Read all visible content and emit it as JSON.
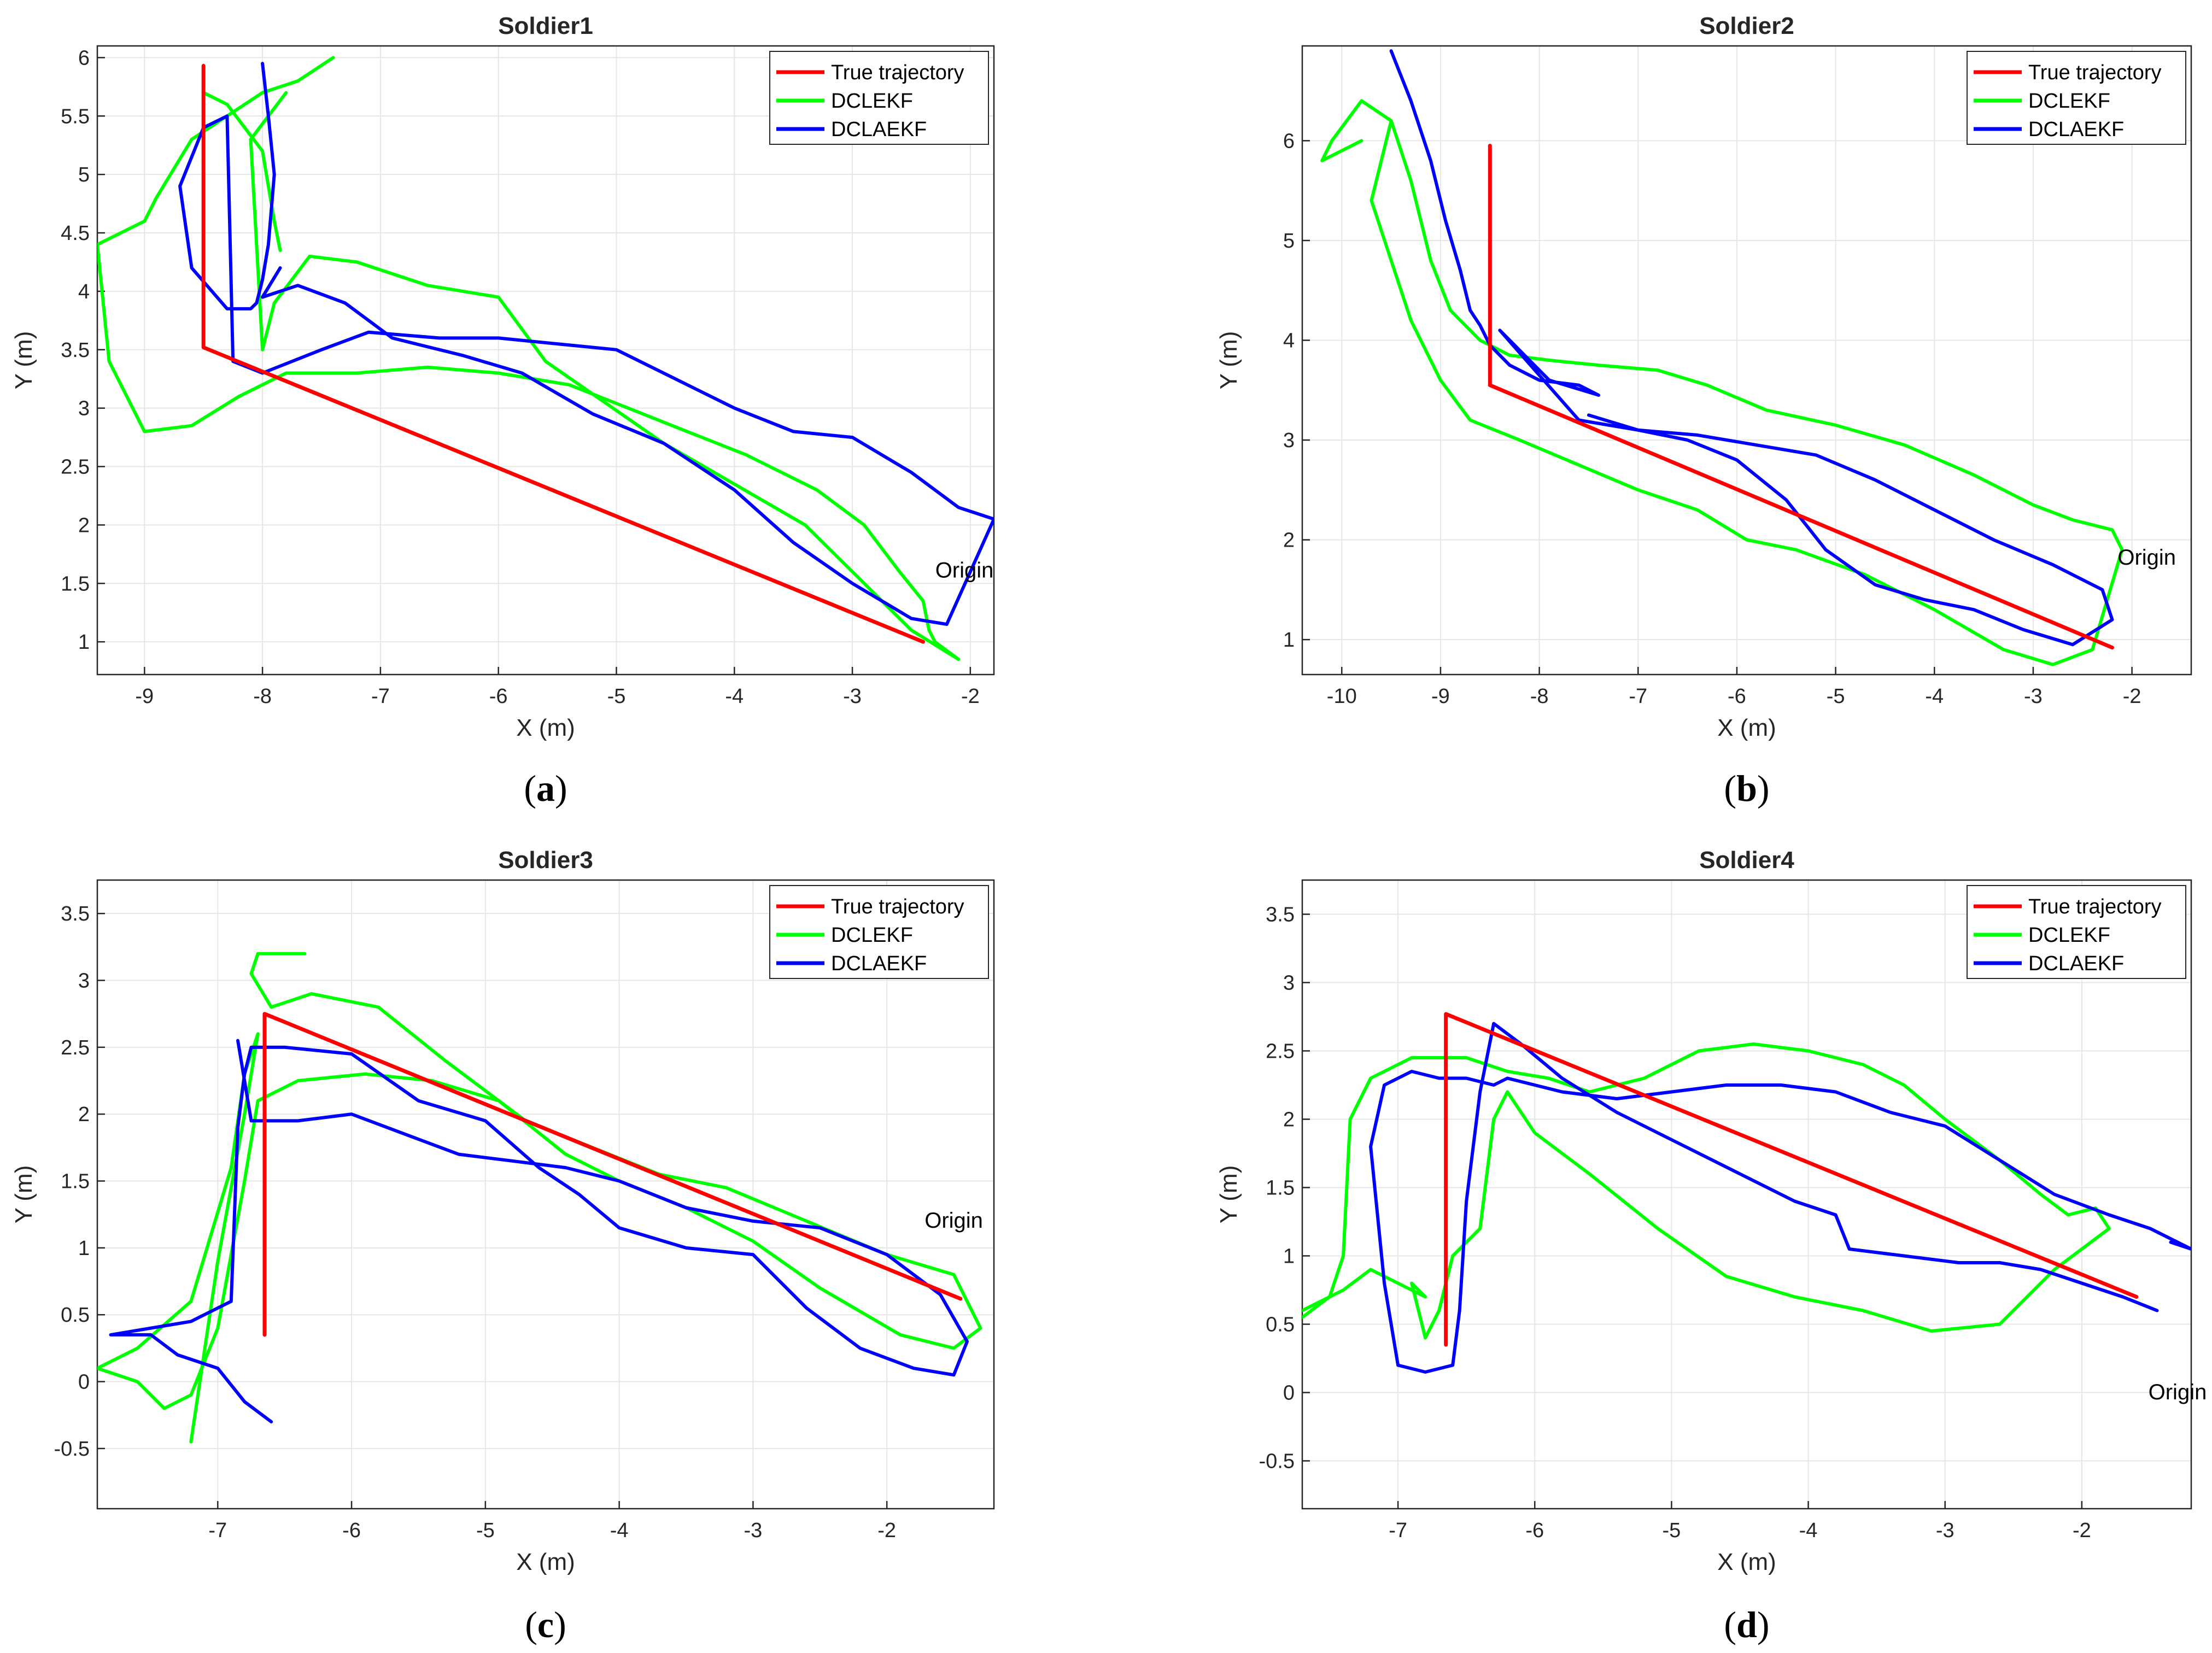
{
  "chart_data": [
    {
      "type": "line",
      "title": "Soldier1",
      "caption_letter": "a",
      "xlabel": "X (m)",
      "ylabel": "Y (m)",
      "xlim": [
        -9.4,
        -1.8
      ],
      "ylim": [
        0.72,
        6.1
      ],
      "xticks": [
        -9,
        -8,
        -7,
        -6,
        -5,
        -4,
        -3,
        -2
      ],
      "yticks": [
        1,
        1.5,
        2,
        2.5,
        3,
        3.5,
        4,
        4.5,
        5,
        5.5,
        6
      ],
      "grid": true,
      "legend_position": "top-right",
      "series": [
        {
          "name": "True trajectory",
          "color": "#ff0000",
          "x": [
            -8.5,
            -8.5,
            -2.4
          ],
          "y": [
            5.93,
            3.52,
            1.0
          ]
        },
        {
          "name": "DCLEKF",
          "color": "#00ff00",
          "x": [
            -7.4,
            -7.7,
            -8.0,
            -8.6,
            -8.9,
            -9.0,
            -9.4,
            -9.3,
            -9.2,
            -9.0,
            -8.6,
            -8.2,
            -7.8,
            -7.2,
            -6.6,
            -6.0,
            -5.4,
            -4.9,
            -4.4,
            -3.9,
            -3.3,
            -2.9,
            -2.6,
            -2.4,
            -2.35,
            -2.3,
            -2.1,
            -2.5,
            -2.7,
            -3.0,
            -3.4,
            -4.0,
            -4.6,
            -5.1,
            -5.6,
            -6.0,
            -6.6,
            -7.2,
            -7.6,
            -7.9,
            -8.0,
            -8.1,
            -7.8
          ],
          "y": [
            6.0,
            5.8,
            5.7,
            5.3,
            4.8,
            4.6,
            4.4,
            3.4,
            3.2,
            2.8,
            2.85,
            3.1,
            3.3,
            3.3,
            3.35,
            3.3,
            3.2,
            3.0,
            2.8,
            2.6,
            2.3,
            2.0,
            1.6,
            1.35,
            1.1,
            1.0,
            0.85,
            1.1,
            1.3,
            1.6,
            2.0,
            2.35,
            2.7,
            3.05,
            3.4,
            3.95,
            4.05,
            4.25,
            4.3,
            3.9,
            3.5,
            5.3,
            5.7
          ],
          "x2": [
            -7.85,
            -7.9,
            -8.0,
            -8.3,
            -8.5
          ],
          "y2": [
            4.35,
            4.6,
            5.2,
            5.6,
            5.7
          ]
        },
        {
          "name": "DCLAEKF",
          "color": "#0000ff",
          "x": [
            -8.0,
            -7.95,
            -7.9,
            -7.95,
            -8.0,
            -8.05,
            -8.1,
            -8.3,
            -8.6,
            -8.7,
            -8.5,
            -8.3,
            -8.25,
            -8.0,
            -7.5,
            -7.1,
            -6.5,
            -6.0,
            -5.5,
            -5.0,
            -4.5,
            -4.0,
            -3.5,
            -3.0,
            -2.5,
            -2.1,
            -1.8,
            -2.2,
            -2.5,
            -3.0,
            -3.5,
            -4.0,
            -4.6,
            -5.2,
            -5.8,
            -6.3,
            -6.9,
            -7.3,
            -7.7,
            -8.0,
            -7.85
          ],
          "y": [
            5.95,
            5.5,
            5.0,
            4.4,
            4.1,
            3.9,
            3.85,
            3.85,
            4.2,
            4.9,
            5.4,
            5.5,
            3.4,
            3.3,
            3.5,
            3.65,
            3.6,
            3.6,
            3.55,
            3.5,
            3.25,
            3.0,
            2.8,
            2.75,
            2.45,
            2.15,
            2.05,
            1.15,
            1.2,
            1.5,
            1.85,
            2.3,
            2.7,
            2.95,
            3.3,
            3.45,
            3.6,
            3.9,
            4.05,
            3.95,
            4.2
          ]
        }
      ],
      "annotations": [
        {
          "text": "Origin",
          "x": -2.05,
          "y": 1.55
        }
      ]
    },
    {
      "type": "line",
      "title": "Soldier2",
      "caption_letter": "b",
      "xlabel": "X (m)",
      "ylabel": "Y (m)",
      "xlim": [
        -10.4,
        -1.4
      ],
      "ylim": [
        0.65,
        6.95
      ],
      "xticks": [
        -10,
        -9,
        -8,
        -7,
        -6,
        -5,
        -4,
        -3,
        -2
      ],
      "yticks": [
        1,
        2,
        3,
        4,
        5,
        6
      ],
      "grid": true,
      "legend_position": "top-right",
      "series": [
        {
          "name": "True trajectory",
          "color": "#ff0000",
          "x": [
            -8.5,
            -8.5,
            -2.2
          ],
          "y": [
            5.95,
            3.55,
            0.92
          ]
        },
        {
          "name": "DCLEKF",
          "color": "#00ff00",
          "x": [
            -9.8,
            -10.2,
            -10.1,
            -9.8,
            -9.5,
            -9.3,
            -9.2,
            -9.1,
            -8.9,
            -8.6,
            -8.3,
            -7.9,
            -7.4,
            -6.8,
            -6.3,
            -5.7,
            -5.0,
            -4.3,
            -3.6,
            -3.0,
            -2.6,
            -2.2,
            -2.1,
            -2.4,
            -2.8,
            -3.3,
            -4.0,
            -4.7,
            -5.4,
            -5.9,
            -6.4,
            -7.0,
            -7.6,
            -8.2,
            -8.7,
            -9.0,
            -9.3,
            -9.5,
            -9.7,
            -9.5
          ],
          "y": [
            6.0,
            5.8,
            6.0,
            6.4,
            6.2,
            5.6,
            5.2,
            4.8,
            4.3,
            4.0,
            3.85,
            3.8,
            3.75,
            3.7,
            3.55,
            3.3,
            3.15,
            2.95,
            2.65,
            2.35,
            2.2,
            2.1,
            1.9,
            0.9,
            0.75,
            0.9,
            1.3,
            1.65,
            1.9,
            2.0,
            2.3,
            2.5,
            2.75,
            3.0,
            3.2,
            3.6,
            4.2,
            4.8,
            5.4,
            6.2
          ]
        },
        {
          "name": "DCLAEKF",
          "color": "#0000ff",
          "x": [
            -9.5,
            -9.3,
            -9.1,
            -8.95,
            -8.8,
            -8.7,
            -8.6,
            -8.5,
            -8.3,
            -8.0,
            -7.6,
            -7.4,
            -7.9,
            -8.2,
            -8.4,
            -7.6,
            -7.0,
            -6.4,
            -5.8,
            -5.2,
            -4.6,
            -4.0,
            -3.4,
            -2.8,
            -2.3,
            -2.2,
            -2.6,
            -3.1,
            -3.6,
            -4.1,
            -4.6,
            -5.1,
            -5.5,
            -6.0,
            -6.5,
            -7.0,
            -7.5
          ],
          "y": [
            6.9,
            6.4,
            5.8,
            5.2,
            4.7,
            4.3,
            4.15,
            3.95,
            3.75,
            3.6,
            3.55,
            3.45,
            3.6,
            3.9,
            4.1,
            3.2,
            3.1,
            3.05,
            2.95,
            2.85,
            2.6,
            2.3,
            2.0,
            1.75,
            1.5,
            1.2,
            0.95,
            1.1,
            1.3,
            1.4,
            1.55,
            1.9,
            2.4,
            2.8,
            3.0,
            3.1,
            3.25
          ]
        }
      ],
      "annotations": [
        {
          "text": "Origin",
          "x": -1.85,
          "y": 1.75
        }
      ]
    },
    {
      "type": "line",
      "title": "Soldier3",
      "caption_letter": "c",
      "xlabel": "X (m)",
      "ylabel": "Y (m)",
      "xlim": [
        -7.9,
        -1.2
      ],
      "ylim": [
        -0.95,
        3.75
      ],
      "xticks": [
        -7,
        -6,
        -5,
        -4,
        -3,
        -2
      ],
      "yticks": [
        -0.5,
        0,
        0.5,
        1,
        1.5,
        2,
        2.5,
        3,
        3.5
      ],
      "grid": true,
      "legend_position": "top-right",
      "series": [
        {
          "name": "True trajectory",
          "color": "#ff0000",
          "x": [
            -6.65,
            -6.65,
            -1.45
          ],
          "y": [
            0.35,
            2.75,
            0.62
          ]
        },
        {
          "name": "DCLEKF",
          "color": "#00ff00",
          "x": [
            -6.35,
            -6.7,
            -6.75,
            -6.6,
            -6.3,
            -5.8,
            -5.3,
            -4.7,
            -4.2,
            -3.7,
            -3.2,
            -2.6,
            -2.0,
            -1.5,
            -1.3,
            -1.5,
            -1.9,
            -2.5,
            -3.0,
            -3.5,
            -4.0,
            -4.4,
            -4.9,
            -5.4,
            -5.9,
            -6.4,
            -6.7,
            -6.8,
            -7.0,
            -7.2,
            -7.4,
            -7.6,
            -7.9,
            -7.6,
            -7.2,
            -6.9,
            -6.8,
            -6.7,
            -6.8,
            -7.0,
            -7.2
          ],
          "y": [
            3.2,
            3.2,
            3.05,
            2.8,
            2.9,
            2.8,
            2.4,
            1.95,
            1.75,
            1.55,
            1.45,
            1.2,
            0.95,
            0.8,
            0.4,
            0.25,
            0.35,
            0.7,
            1.05,
            1.3,
            1.5,
            1.7,
            2.1,
            2.25,
            2.3,
            2.25,
            2.1,
            1.5,
            0.4,
            -0.1,
            -0.2,
            0.0,
            0.1,
            0.25,
            0.6,
            1.6,
            2.3,
            2.6,
            2.0,
            0.9,
            -0.45
          ]
        },
        {
          "name": "DCLAEKF",
          "color": "#0000ff",
          "x": [
            -6.6,
            -6.8,
            -7.0,
            -7.3,
            -7.5,
            -7.8,
            -7.2,
            -6.9,
            -6.85,
            -6.8,
            -6.75,
            -6.5,
            -6.0,
            -5.5,
            -5.0,
            -4.6,
            -4.3,
            -4.0,
            -3.5,
            -3.0,
            -2.6,
            -2.2,
            -1.8,
            -1.5,
            -1.4,
            -1.6,
            -2.0,
            -2.5,
            -3.0,
            -3.5,
            -4.0,
            -4.4,
            -4.8,
            -5.2,
            -5.6,
            -6.0,
            -6.4,
            -6.75,
            -6.85
          ],
          "y": [
            -0.3,
            -0.15,
            0.1,
            0.2,
            0.35,
            0.35,
            0.45,
            0.6,
            1.9,
            2.3,
            2.5,
            2.5,
            2.45,
            2.1,
            1.95,
            1.6,
            1.4,
            1.15,
            1.0,
            0.95,
            0.55,
            0.25,
            0.1,
            0.05,
            0.3,
            0.65,
            0.95,
            1.15,
            1.2,
            1.3,
            1.5,
            1.6,
            1.65,
            1.7,
            1.85,
            2.0,
            1.95,
            1.95,
            2.55
          ]
        }
      ],
      "annotations": [
        {
          "text": "Origin",
          "x": -1.5,
          "y": 1.15
        }
      ]
    },
    {
      "type": "line",
      "title": "Soldier4",
      "caption_letter": "d",
      "xlabel": "X (m)",
      "ylabel": "Y (m)",
      "xlim": [
        -7.7,
        -1.2
      ],
      "ylim": [
        -0.85,
        3.75
      ],
      "xticks": [
        -7,
        -6,
        -5,
        -4,
        -3,
        -2
      ],
      "yticks": [
        -0.5,
        0,
        0.5,
        1,
        1.5,
        2,
        2.5,
        3,
        3.5
      ],
      "grid": true,
      "legend_position": "top-right",
      "series": [
        {
          "name": "True trajectory",
          "color": "#ff0000",
          "x": [
            -6.65,
            -6.65,
            -1.6
          ],
          "y": [
            0.35,
            2.77,
            0.7
          ]
        },
        {
          "name": "DCLEKF",
          "color": "#00ff00",
          "x": [
            -7.7,
            -7.5,
            -7.4,
            -7.35,
            -7.2,
            -6.9,
            -6.5,
            -6.2,
            -5.9,
            -5.6,
            -5.2,
            -4.8,
            -4.4,
            -4.0,
            -3.6,
            -3.3,
            -3.0,
            -2.6,
            -2.3,
            -2.1,
            -1.9,
            -1.8,
            -2.2,
            -2.6,
            -3.1,
            -3.6,
            -4.1,
            -4.6,
            -5.1,
            -5.6,
            -6.0,
            -6.2,
            -6.3,
            -6.4,
            -6.6,
            -6.7,
            -6.8,
            -6.9,
            -6.8,
            -7.2,
            -7.4,
            -7.7
          ],
          "y": [
            0.55,
            0.7,
            1.0,
            2.0,
            2.3,
            2.45,
            2.45,
            2.35,
            2.3,
            2.2,
            2.3,
            2.5,
            2.55,
            2.5,
            2.4,
            2.25,
            2.0,
            1.7,
            1.45,
            1.3,
            1.35,
            1.2,
            0.9,
            0.5,
            0.45,
            0.6,
            0.7,
            0.85,
            1.2,
            1.6,
            1.9,
            2.2,
            2.0,
            1.2,
            1.0,
            0.6,
            0.4,
            0.8,
            0.7,
            0.9,
            0.75,
            0.6
          ]
        },
        {
          "name": "DCLAEKF",
          "color": "#0000ff",
          "x": [
            -1.45,
            -1.7,
            -2.0,
            -2.3,
            -2.6,
            -2.9,
            -3.3,
            -3.7,
            -3.8,
            -4.1,
            -4.5,
            -5.0,
            -5.4,
            -5.8,
            -6.1,
            -6.3,
            -6.4,
            -6.5,
            -6.55,
            -6.6,
            -6.8,
            -7.0,
            -7.1,
            -7.2,
            -7.1,
            -6.9,
            -6.7,
            -6.5,
            -6.3,
            -6.2,
            -5.8,
            -5.4,
            -5.0,
            -4.6,
            -4.2,
            -3.8,
            -3.4,
            -3.0,
            -2.6,
            -2.2,
            -1.8,
            -1.5,
            -1.2,
            -1.35
          ],
          "y": [
            0.6,
            0.7,
            0.8,
            0.9,
            0.95,
            0.95,
            1.0,
            1.05,
            1.3,
            1.4,
            1.6,
            1.85,
            2.05,
            2.3,
            2.55,
            2.7,
            2.2,
            1.4,
            0.6,
            0.2,
            0.15,
            0.2,
            0.8,
            1.8,
            2.25,
            2.35,
            2.3,
            2.3,
            2.25,
            2.3,
            2.2,
            2.15,
            2.2,
            2.25,
            2.25,
            2.2,
            2.05,
            1.95,
            1.7,
            1.45,
            1.3,
            1.2,
            1.05,
            1.1
          ]
        }
      ],
      "annotations": [
        {
          "text": "Origin",
          "x": -1.3,
          "y": -0.05
        }
      ]
    }
  ]
}
